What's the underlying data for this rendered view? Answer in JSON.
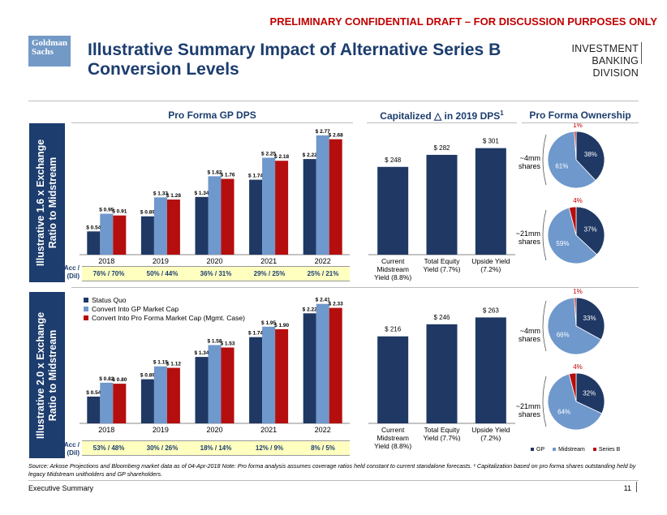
{
  "banner": "PRELIMINARY CONFIDENTIAL DRAFT – FOR DISCUSSION PURPOSES ONLY",
  "logo": "Goldman Sachs",
  "title": "Illustrative Summary Impact of Alternative Series B Conversion Levels",
  "division": {
    "line1": "INVESTMENT BANKING",
    "line2": "DIVISION"
  },
  "headers": {
    "gp_dps": "Pro Forma GP DPS",
    "capitalized": "Capitalized △ in 2019 DPS",
    "capitalized_sup": "1",
    "ownership": "Pro Forma Ownership"
  },
  "acc_label": "Acc / (Dil)",
  "legend": [
    "Status Quo",
    "Convert Into GP Market Cap",
    "Convert Into Pro Forma Market Cap (Mgmt. Case)"
  ],
  "pie_legend": [
    "GP",
    "Midstream",
    "Series B"
  ],
  "colors": {
    "status_quo": "#1f3864",
    "gp_mkt": "#6f98cc",
    "pf_mkt": "#b50e0e",
    "pie_gp": "#1f3864",
    "pie_mid": "#6f98cc",
    "pie_b": "#b50e0e"
  },
  "panels": [
    {
      "side_label": [
        "Illustrative 1.6 x Exchange",
        "Ratio to Midstream"
      ],
      "acc_values": [
        "76% / 70%",
        "50% / 44%",
        "36% / 31%",
        "29% / 25%",
        "25% / 21%"
      ],
      "shares": [
        [
          "~4mm",
          "shares"
        ],
        [
          "~21mm",
          "shares"
        ]
      ],
      "pies": [
        {
          "gp": 38,
          "mid": 61,
          "b": 1,
          "labels": {
            "gp": "38%",
            "mid": "61%",
            "b": "1%"
          }
        },
        {
          "gp": 37,
          "mid": 59,
          "b": 4,
          "labels": {
            "gp": "37%",
            "mid": "59%",
            "b": "4%"
          }
        }
      ]
    },
    {
      "side_label": [
        "Illustrative 2.0 x Exchange",
        "Ratio to Midstream"
      ],
      "acc_values": [
        "53% / 48%",
        "30% / 26%",
        "18% / 14%",
        "12% / 9%",
        "8% / 5%"
      ],
      "shares": [
        [
          "~4mm",
          "shares"
        ],
        [
          "~21mm",
          "shares"
        ]
      ],
      "pies": [
        {
          "gp": 33,
          "mid": 66,
          "b": 1,
          "labels": {
            "gp": "33%",
            "mid": "66%",
            "b": "1%"
          }
        },
        {
          "gp": 32,
          "mid": 64,
          "b": 4,
          "labels": {
            "gp": "32%",
            "mid": "64%",
            "b": "4%"
          }
        }
      ]
    }
  ],
  "chart_data": [
    {
      "type": "bar",
      "title": "Pro Forma GP DPS",
      "subtitle": "Illustrative 1.6 x Exchange Ratio to Midstream",
      "categories": [
        "2018",
        "2019",
        "2020",
        "2021",
        "2022"
      ],
      "series": [
        {
          "name": "Status Quo",
          "values": [
            0.54,
            0.89,
            1.34,
            1.74,
            2.22
          ],
          "labels": [
            "$ 0.54",
            "$ 0.89",
            "$ 1.34",
            "$ 1.74",
            "$ 2.22"
          ]
        },
        {
          "name": "Convert Into GP Market Cap",
          "values": [
            0.95,
            1.33,
            1.82,
            2.25,
            2.77
          ],
          "labels": [
            "$ 0.95",
            "$ 1.33",
            "$ 1.82",
            "$ 2.25",
            "$ 2.77"
          ]
        },
        {
          "name": "Convert Into Pro Forma Market Cap (Mgmt. Case)",
          "values": [
            0.91,
            1.28,
            1.76,
            2.18,
            2.68
          ],
          "labels": [
            "$ 0.91",
            "$ 1.28",
            "$ 1.76",
            "$ 2.18",
            "$ 2.68"
          ]
        }
      ],
      "ylim": [
        0,
        2.9
      ]
    },
    {
      "type": "bar",
      "title": "Capitalized △ in 2019 DPS",
      "subtitle": "Illustrative 1.6 x Exchange Ratio to Midstream",
      "categories": [
        "Current Midstream Yield (8.8%)",
        "Total Equity Yield (7.7%)",
        "Upside Yield (7.2%)"
      ],
      "category_lines": [
        [
          "Current",
          "Midstream",
          "Yield (8.8%)"
        ],
        [
          "Total Equity",
          "Yield (7.7%)"
        ],
        [
          "Upside Yield",
          "(7.2%)"
        ]
      ],
      "values": [
        248,
        282,
        301
      ],
      "labels": [
        "$ 248",
        "$ 282",
        "$ 301"
      ],
      "ylim": [
        0,
        330
      ]
    },
    {
      "type": "bar",
      "title": "Pro Forma GP DPS",
      "subtitle": "Illustrative 2.0 x Exchange Ratio to Midstream",
      "categories": [
        "2018",
        "2019",
        "2020",
        "2021",
        "2022"
      ],
      "series": [
        {
          "name": "Status Quo",
          "values": [
            0.54,
            0.89,
            1.34,
            1.74,
            2.22
          ],
          "labels": [
            "$ 0.54",
            "$ 0.89",
            "$ 1.34",
            "$ 1.74",
            "$ 2.22"
          ]
        },
        {
          "name": "Convert Into GP Market Cap",
          "values": [
            0.82,
            1.15,
            1.58,
            1.95,
            2.41
          ],
          "labels": [
            "$ 0.82",
            "$ 1.15",
            "$ 1.58",
            "$ 1.95",
            "$ 2.41"
          ]
        },
        {
          "name": "Convert Into Pro Forma Market Cap (Mgmt. Case)",
          "values": [
            0.8,
            1.12,
            1.53,
            1.9,
            2.33
          ],
          "labels": [
            "$ 0.80",
            "$ 1.12",
            "$ 1.53",
            "$ 1.90",
            "$ 2.33"
          ]
        }
      ],
      "ylim": [
        0,
        2.52
      ]
    },
    {
      "type": "bar",
      "title": "Capitalized △ in 2019 DPS",
      "subtitle": "Illustrative 2.0 x Exchange Ratio to Midstream",
      "categories": [
        "Current Midstream Yield (8.8%)",
        "Total Equity Yield (7.7%)",
        "Upside Yield (7.2%)"
      ],
      "category_lines": [
        [
          "Current",
          "Midstream",
          "Yield (8.8%)"
        ],
        [
          "Total Equity",
          "Yield (7.7%)"
        ],
        [
          "Upside Yield",
          "(7.2%)"
        ]
      ],
      "values": [
        216,
        246,
        263
      ],
      "labels": [
        "$ 216",
        "$ 246",
        "$ 263"
      ],
      "ylim": [
        0,
        290
      ]
    }
  ],
  "source": "Source: Arkose Projections and Bloomberg market data as of 04-Apr-2018 Note: Pro forma analysis assumes coverage ratios held constant to current standalone forecasts. ¹ Capitalization based on pro forma shares outstanding held by legacy Midstream unitholders and GP shareholders.",
  "footer": {
    "left": "Executive Summary",
    "page": "11"
  }
}
